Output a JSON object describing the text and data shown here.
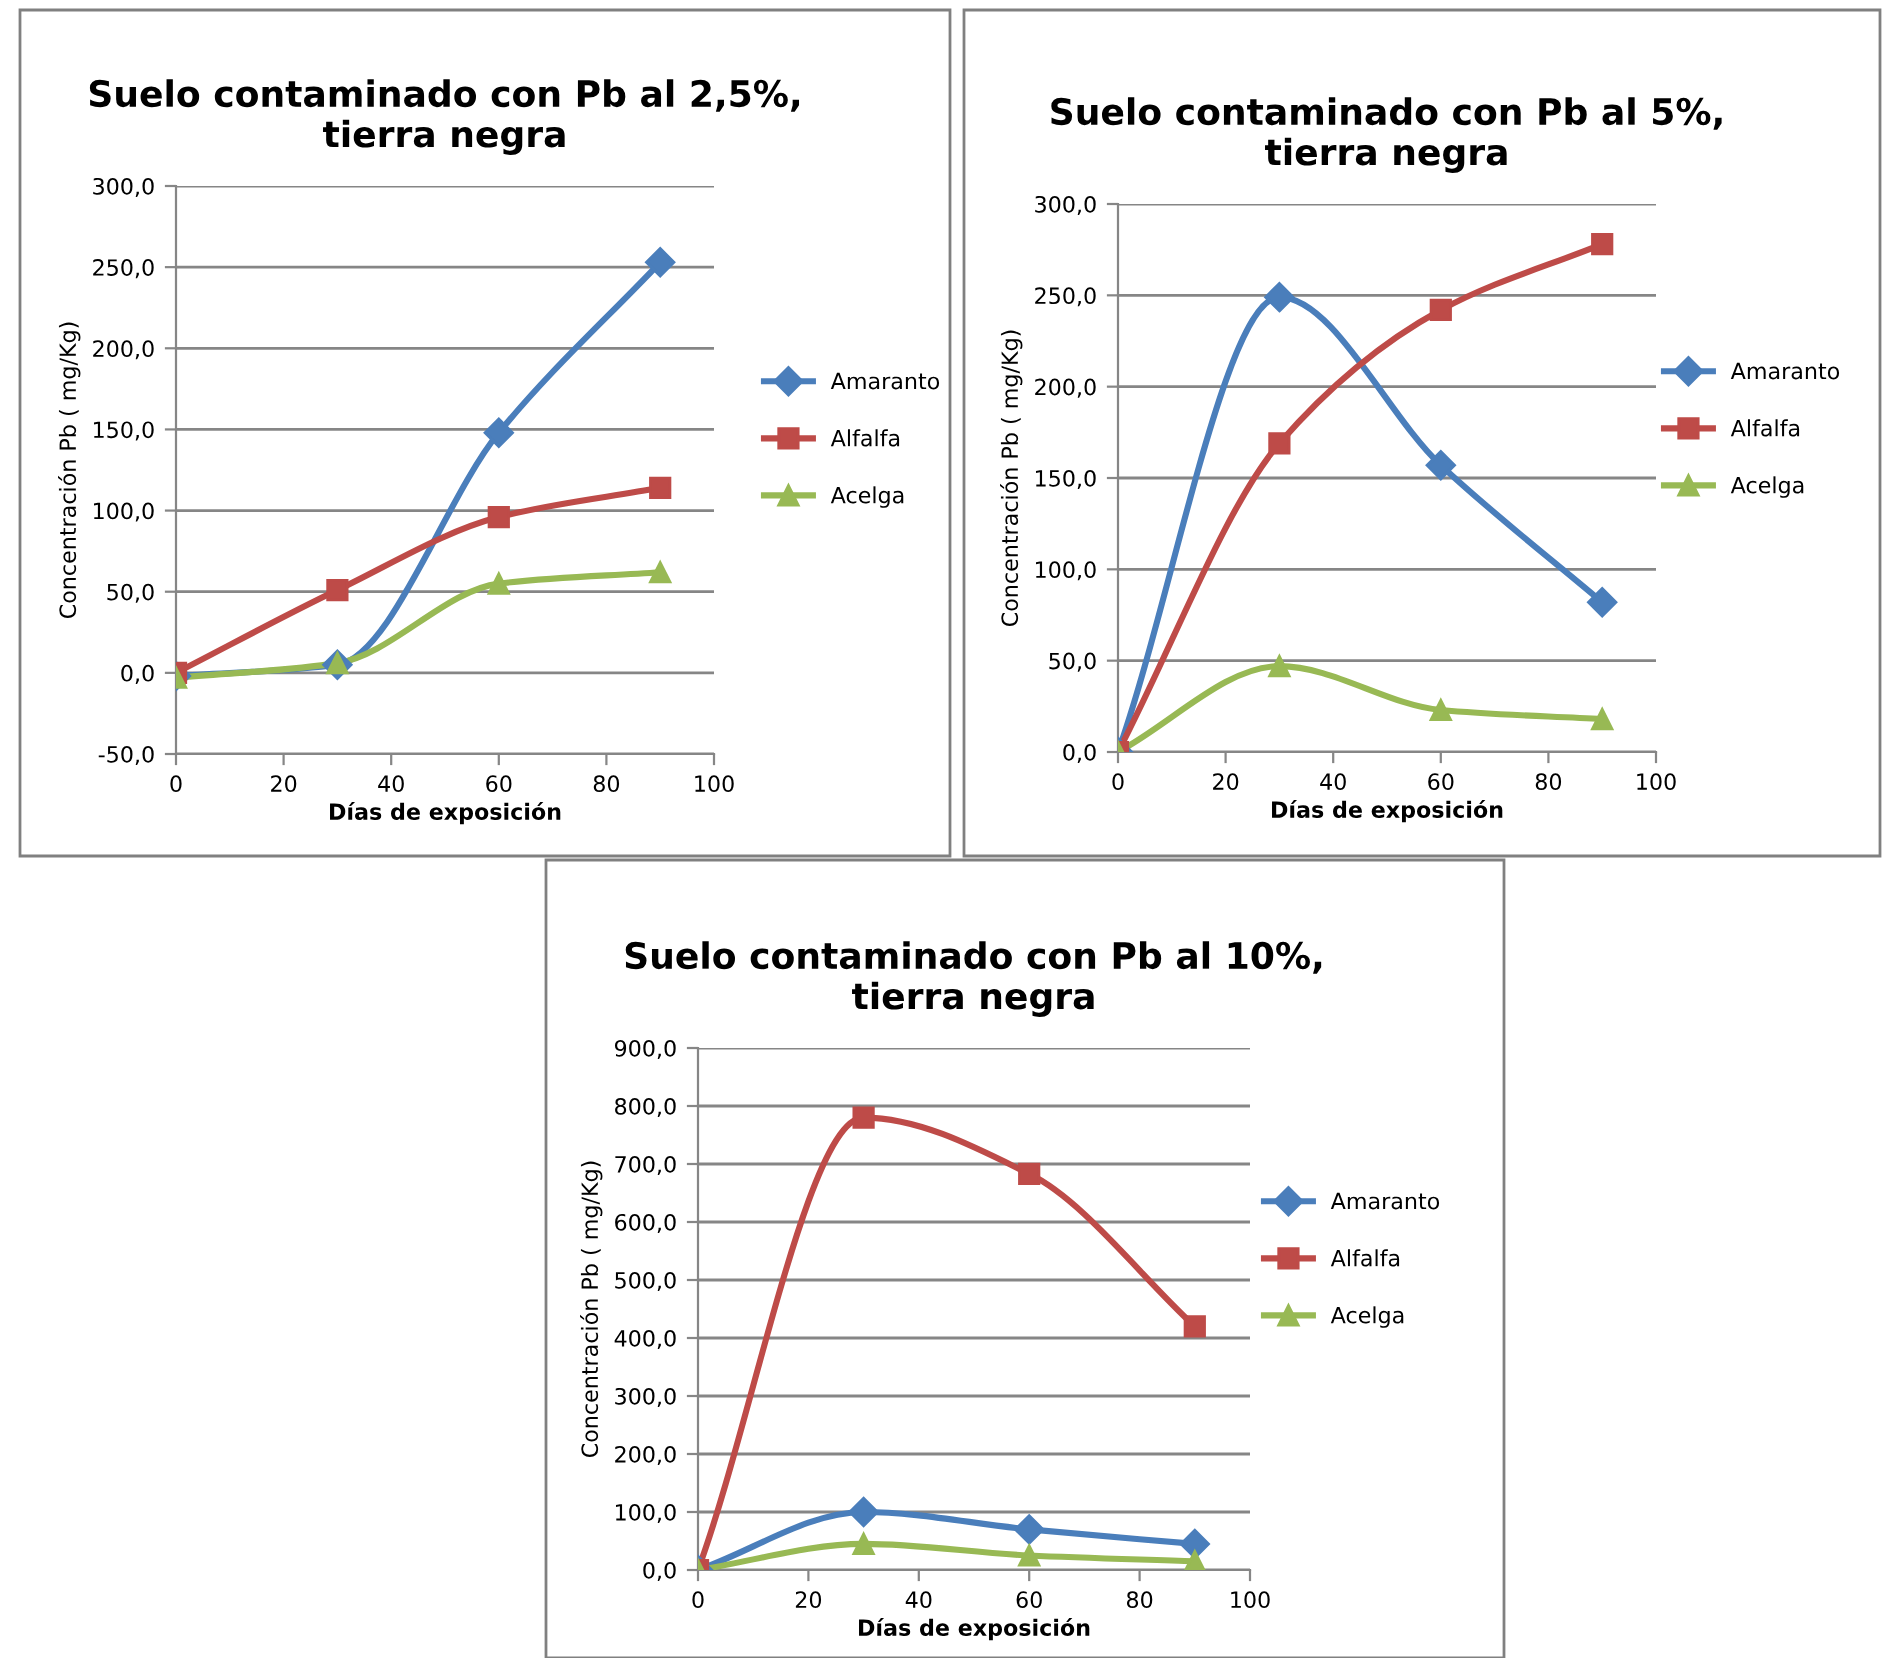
{
  "chart_data": [
    {
      "type": "line",
      "title": "Suelo contaminado con Pb al 2,5%,\ntierra negra",
      "xlabel": "Días de exposición",
      "ylabel": "Concentración Pb ( mg/Kg)",
      "x": [
        0,
        30,
        60,
        90
      ],
      "series": [
        {
          "name": "Amaranto",
          "color": "#4a7ebb",
          "marker": "diamond",
          "values": [
            -2,
            5,
            148,
            253
          ]
        },
        {
          "name": "Alfalfa",
          "color": "#be4b48",
          "marker": "square",
          "values": [
            0,
            51,
            96,
            114
          ]
        },
        {
          "name": "Acelga",
          "color": "#98b954",
          "marker": "triangle",
          "values": [
            -3,
            6,
            55,
            62
          ]
        }
      ],
      "xlim": [
        0,
        100
      ],
      "xticks": [
        0,
        20,
        40,
        60,
        80,
        100
      ],
      "ylim": [
        -50,
        300
      ],
      "yticks": [
        {
          "value": -50,
          "label": "-50,0"
        },
        {
          "value": 0,
          "label": "0,0"
        },
        {
          "value": 50,
          "label": "50,0"
        },
        {
          "value": 100,
          "label": "100,0"
        },
        {
          "value": 150,
          "label": "150,0"
        },
        {
          "value": 200,
          "label": "200,0"
        },
        {
          "value": 250,
          "label": "250,0"
        },
        {
          "value": 300,
          "label": "300,0"
        }
      ],
      "grid": "y",
      "legend": "right"
    },
    {
      "type": "line",
      "title": "Suelo contaminado con Pb al 5%,\ntierra negra",
      "xlabel": "Días de exposición",
      "ylabel": "Concentración Pb ( mg/Kg)",
      "x": [
        0,
        30,
        60,
        90
      ],
      "series": [
        {
          "name": "Amaranto",
          "color": "#4a7ebb",
          "marker": "diamond",
          "values": [
            0,
            249,
            157,
            82
          ]
        },
        {
          "name": "Alfalfa",
          "color": "#be4b48",
          "marker": "square",
          "values": [
            0,
            169,
            242,
            278
          ]
        },
        {
          "name": "Acelga",
          "color": "#98b954",
          "marker": "triangle",
          "values": [
            0,
            47,
            23,
            18
          ]
        }
      ],
      "xlim": [
        0,
        100
      ],
      "xticks": [
        0,
        20,
        40,
        60,
        80,
        100
      ],
      "ylim": [
        0,
        300
      ],
      "yticks": [
        {
          "value": 0,
          "label": "0,0"
        },
        {
          "value": 50,
          "label": "50,0"
        },
        {
          "value": 100,
          "label": "100,0"
        },
        {
          "value": 150,
          "label": "150,0"
        },
        {
          "value": 200,
          "label": "200,0"
        },
        {
          "value": 250,
          "label": "250,0"
        },
        {
          "value": 300,
          "label": "300,0"
        }
      ],
      "grid": "y",
      "legend": "right"
    },
    {
      "type": "line",
      "title": "Suelo contaminado con Pb al 10%,\ntierra negra",
      "xlabel": "Días de exposición",
      "ylabel": "Concentración Pb ( mg/Kg)",
      "x": [
        0,
        30,
        60,
        90
      ],
      "series": [
        {
          "name": "Amaranto",
          "color": "#4a7ebb",
          "marker": "diamond",
          "values": [
            0,
            100,
            70,
            45
          ]
        },
        {
          "name": "Alfalfa",
          "color": "#be4b48",
          "marker": "square",
          "values": [
            0,
            780,
            683,
            420
          ]
        },
        {
          "name": "Acelga",
          "color": "#98b954",
          "marker": "triangle",
          "values": [
            0,
            45,
            25,
            15
          ]
        }
      ],
      "xlim": [
        0,
        100
      ],
      "xticks": [
        0,
        20,
        40,
        60,
        80,
        100
      ],
      "ylim": [
        0,
        900
      ],
      "yticks": [
        {
          "value": 0,
          "label": "0,0"
        },
        {
          "value": 100,
          "label": "100,0"
        },
        {
          "value": 200,
          "label": "200,0"
        },
        {
          "value": 300,
          "label": "300,0"
        },
        {
          "value": 400,
          "label": "400,0"
        },
        {
          "value": 500,
          "label": "500,0"
        },
        {
          "value": 600,
          "label": "600,0"
        },
        {
          "value": 700,
          "label": "700,0"
        },
        {
          "value": 800,
          "label": "800,0"
        },
        {
          "value": 900,
          "label": "900,0"
        }
      ],
      "grid": "y",
      "legend": "right"
    }
  ]
}
